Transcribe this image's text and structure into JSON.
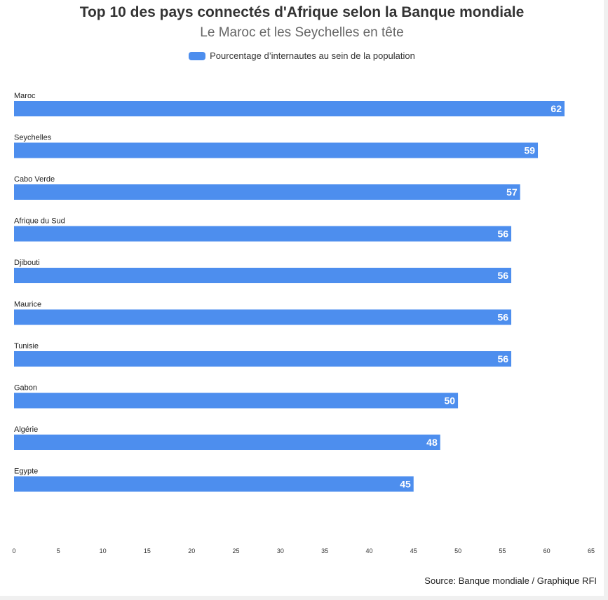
{
  "title": "Top 10 des pays connectés d'Afrique selon la Banque mondiale",
  "subtitle": "Le Maroc et les Seychelles en tête",
  "source": "Source: Banque mondiale / Graphique RFI",
  "colors": {
    "bar": "#4d8eee",
    "page_background": "#ffffff"
  },
  "chart_data": {
    "type": "bar",
    "orientation": "horizontal",
    "title": "Top 10 des pays connectés d'Afrique selon la Banque mondiale",
    "subtitle": "Le Maroc et les Seychelles en tête",
    "legend_position": "top-center",
    "grid": false,
    "categories": [
      "Maroc",
      "Seychelles",
      "Cabo Verde",
      "Afrique du Sud",
      "Djibouti",
      "Maurice",
      "Tunisie",
      "Gabon",
      "Algérie",
      "Egypte"
    ],
    "series": [
      {
        "name": "Pourcentage d’internautes au sein de la population",
        "values": [
          62,
          59,
          57,
          56,
          56,
          56,
          56,
          50,
          48,
          45
        ]
      }
    ],
    "xlim": [
      0,
      65
    ],
    "xticks": [
      0,
      5,
      10,
      15,
      20,
      25,
      30,
      35,
      40,
      45,
      50,
      55,
      60,
      65
    ],
    "data_labels": true
  }
}
